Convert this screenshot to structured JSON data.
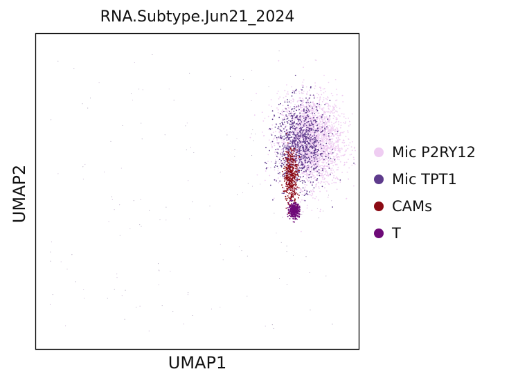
{
  "chart_data": {
    "type": "scatter",
    "title": "RNA.Subtype.Jun21_2024",
    "xlabel": "UMAP1",
    "ylabel": "UMAP2",
    "xticks": [],
    "yticks": [],
    "grid": false,
    "legend_position": "right",
    "series": [
      {
        "name": "Mic P2RY12",
        "color": "#efcdf2",
        "center": [
          0.85,
          0.66
        ],
        "spread": [
          0.09,
          0.13
        ],
        "count": 2600
      },
      {
        "name": "Mic TPT1",
        "color": "#5e3b8c",
        "center": [
          0.82,
          0.65
        ],
        "spread": [
          0.07,
          0.12
        ],
        "count": 900
      },
      {
        "name": "CAMs",
        "color": "#8b0a14",
        "center": [
          0.79,
          0.55
        ],
        "spread": [
          0.02,
          0.08
        ],
        "count": 450
      },
      {
        "name": "T",
        "color": "#6e0a78",
        "center": [
          0.8,
          0.44
        ],
        "spread": [
          0.015,
          0.02
        ],
        "count": 380
      }
    ]
  }
}
